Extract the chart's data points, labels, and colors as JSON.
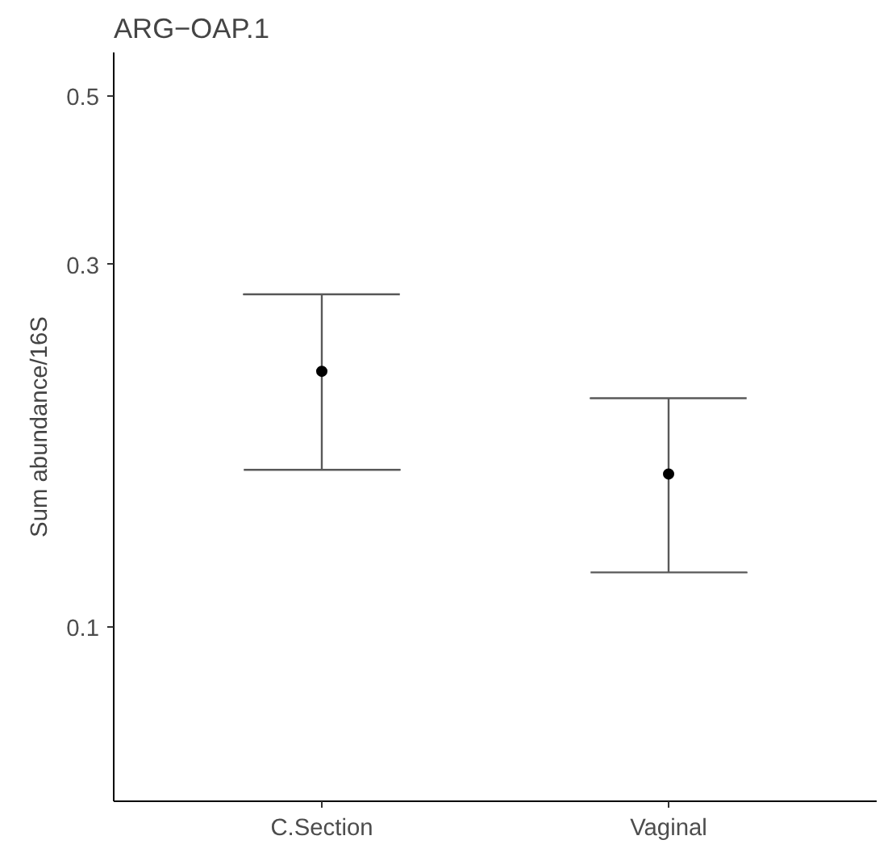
{
  "chart_data": {
    "type": "scatter",
    "title": "ARG−OAP.1",
    "ylabel": "Sum abundance/16S",
    "categories": [
      "C.Section",
      "Vaginal"
    ],
    "color": "#000000",
    "values": [
      0.217,
      0.159
    ],
    "errors": [
      [
        0.161,
        0.274
      ],
      [
        0.118,
        0.2
      ]
    ],
    "log": "y",
    "ylim": [
      0.059,
      0.57
    ],
    "yticks": [
      0.1,
      0.3,
      0.5
    ],
    "grid": false,
    "marker": "circle"
  }
}
